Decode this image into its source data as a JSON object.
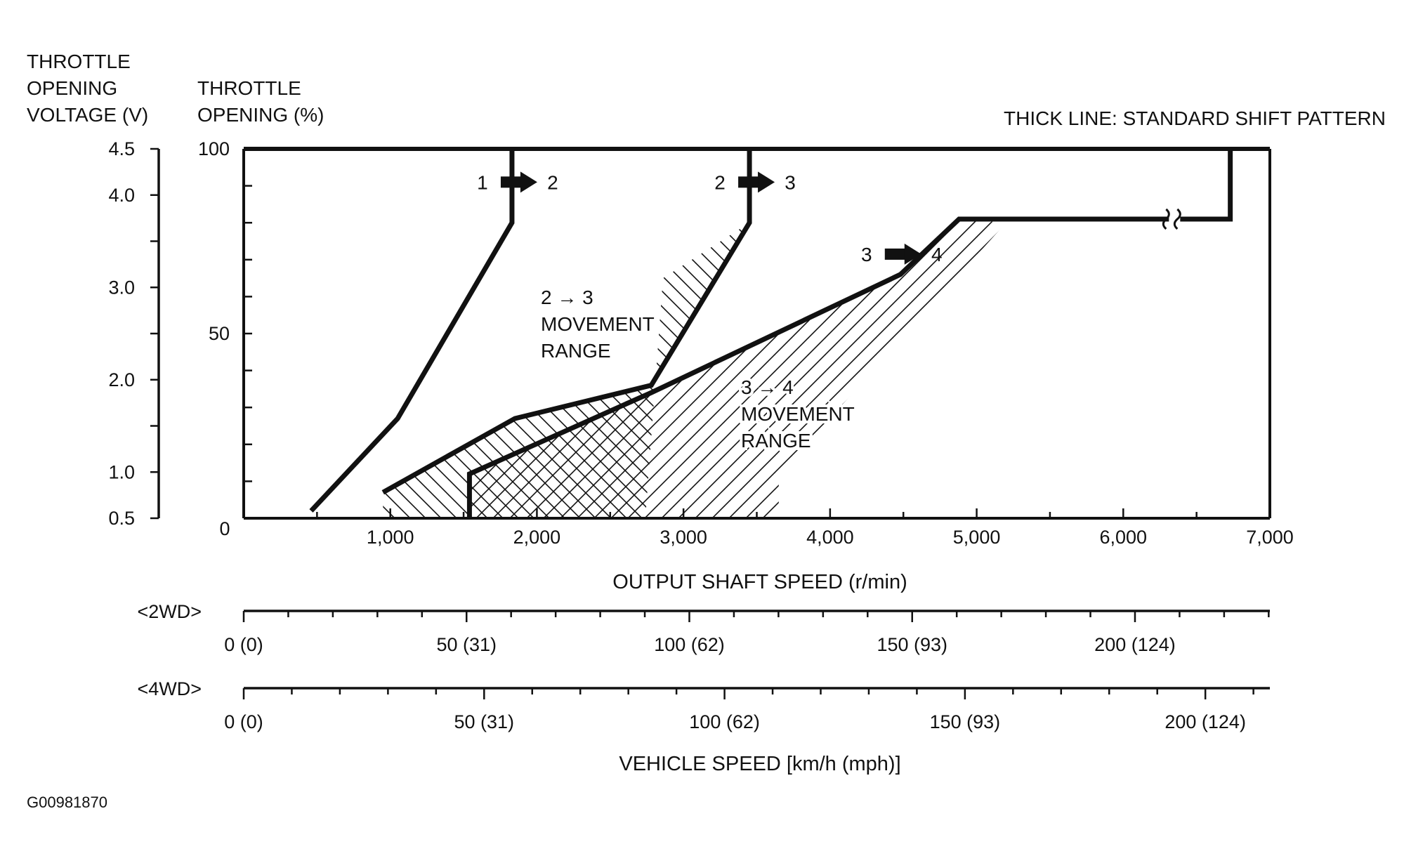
{
  "chart_data": {
    "type": "line",
    "title": "",
    "note": "THICK LINE: STANDARD SHIFT PATTERN",
    "figure_id": "G00981870",
    "y_voltage_label": [
      "THROTTLE",
      "OPENING",
      "VOLTAGE (V)"
    ],
    "y_percent_label": [
      "THROTTLE",
      "OPENING (%)"
    ],
    "xlabel": "OUTPUT SHAFT SPEED (r/min)",
    "vehicle_speed_label": "VEHICLE SPEED [km/h (mph)]",
    "xlim": [
      0,
      7000
    ],
    "ylim": [
      0,
      100
    ],
    "x_ticks": [
      "1,000",
      "2,000",
      "3,000",
      "4,000",
      "5,000",
      "6,000",
      "7,000"
    ],
    "x_zero_label": "0",
    "y_percent_ticks": [
      {
        "value": 0,
        "label": "0"
      },
      {
        "value": 50,
        "label": "50"
      },
      {
        "value": 100,
        "label": "100"
      }
    ],
    "y_voltage_ticks": [
      {
        "value": 0.5,
        "label": "0.5"
      },
      {
        "value": 1.0,
        "label": "1.0"
      },
      {
        "value": 2.0,
        "label": "2.0"
      },
      {
        "value": 3.0,
        "label": "3.0"
      },
      {
        "value": 4.0,
        "label": "4.0"
      },
      {
        "value": 4.5,
        "label": "4.5"
      }
    ],
    "series": [
      {
        "name": "1 → 2",
        "label_from": "1",
        "label_to": "2",
        "x": [
          460,
          1050,
          1830,
          1830
        ],
        "y": [
          2,
          27,
          80,
          100
        ]
      },
      {
        "name": "2 → 3",
        "label_from": "2",
        "label_to": "3",
        "x": [
          950,
          1850,
          2780,
          3450,
          3450
        ],
        "y": [
          7,
          27,
          36,
          80,
          100
        ]
      },
      {
        "name": "3 → 4",
        "label_from": "3",
        "label_to": "4",
        "x": [
          1540,
          1540,
          2780,
          4480,
          4880,
          6730,
          6730
        ],
        "y": [
          0,
          12,
          34,
          66,
          81,
          81,
          100
        ]
      }
    ],
    "ranges": [
      {
        "name": "2 → 3 MOVEMENT RANGE",
        "label_lines": [
          "2 → 3",
          "MOVEMENT",
          "RANGE"
        ],
        "x": [
          950,
          1850,
          2780,
          3450,
          2860,
          2740,
          950
        ],
        "y": [
          7,
          27,
          36,
          80,
          65,
          0,
          0
        ]
      },
      {
        "name": "3 → 4 MOVEMENT RANGE",
        "label_lines": [
          "3 → 4",
          "MOVEMENT",
          "RANGE"
        ],
        "x": [
          1540,
          1540,
          2780,
          4480,
          4880,
          5200,
          4250,
          3650,
          3650
        ],
        "y": [
          0,
          12,
          34,
          66,
          81,
          80,
          38,
          12,
          0
        ]
      }
    ],
    "break_mark_x": 6350,
    "vehicle_scales": [
      {
        "name": "<2WD>",
        "ticks": [
          {
            "x_rpm": 0,
            "label": "0 (0)"
          },
          {
            "x_rpm": 1520,
            "label": "50 (31)"
          },
          {
            "x_rpm": 3040,
            "label": "100 (62)"
          },
          {
            "x_rpm": 4560,
            "label": "150 (93)"
          },
          {
            "x_rpm": 6080,
            "label": "200 (124)"
          }
        ]
      },
      {
        "name": "<4WD>",
        "ticks": [
          {
            "x_rpm": 0,
            "label": "0 (0)"
          },
          {
            "x_rpm": 1640,
            "label": "50 (31)"
          },
          {
            "x_rpm": 3280,
            "label": "100 (62)"
          },
          {
            "x_rpm": 4920,
            "label": "150 (93)"
          },
          {
            "x_rpm": 6560,
            "label": "200 (124)"
          }
        ]
      }
    ]
  }
}
